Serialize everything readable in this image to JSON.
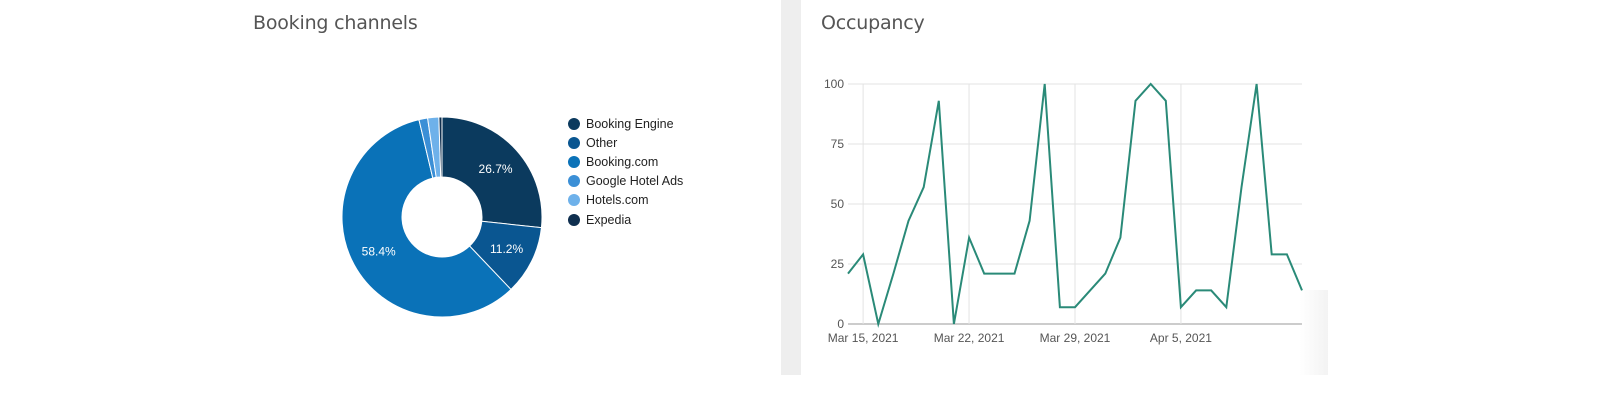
{
  "booking": {
    "title": "Booking channels"
  },
  "occupancy": {
    "title": "Occupancy"
  },
  "chart_data": [
    {
      "type": "pie",
      "title": "Booking channels",
      "donut": true,
      "legend_position": "right",
      "slices": [
        {
          "label": "Booking Engine",
          "value": 26.7,
          "color": "#0b3a5e",
          "display": "26.7%"
        },
        {
          "label": "Other",
          "value": 11.2,
          "color": "#0a5691",
          "display": "11.2%"
        },
        {
          "label": "Booking.com",
          "value": 58.4,
          "color": "#0a72b8",
          "display": "58.4%"
        },
        {
          "label": "Google Hotel Ads",
          "value": 1.4,
          "color": "#3b8fd6",
          "display": ""
        },
        {
          "label": "Hotels.com",
          "value": 1.8,
          "color": "#6eb1ea",
          "display": ""
        },
        {
          "label": "Expedia",
          "value": 0.5,
          "color": "#0f2f4f",
          "display": ""
        }
      ]
    },
    {
      "type": "line",
      "title": "Occupancy",
      "xlabel": "",
      "ylabel": "",
      "grid": true,
      "ylim": [
        0,
        100
      ],
      "yticks": [
        0,
        25,
        50,
        75,
        100
      ],
      "x_start": "Mar 14, 2021",
      "x_tick_labels": [
        "Mar 15, 2021",
        "Mar 22, 2021",
        "Mar 29, 2021",
        "Apr 5, 2021"
      ],
      "x_tick_index": [
        1,
        8,
        15,
        22
      ],
      "color": "#2a8a78",
      "series": [
        {
          "values": [
            21,
            29,
            0,
            21,
            43,
            57,
            93,
            0,
            36,
            21,
            21,
            21,
            43,
            100,
            7,
            7,
            14,
            21,
            36,
            93,
            100,
            93,
            7,
            14,
            14,
            7,
            57,
            100,
            29,
            29,
            14
          ]
        }
      ]
    }
  ]
}
